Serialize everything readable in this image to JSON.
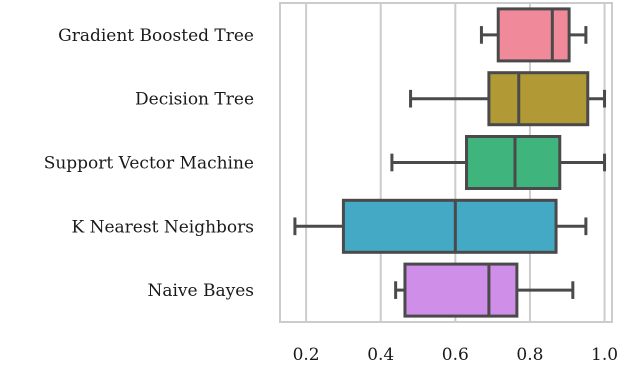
{
  "chart_data": {
    "type": "box",
    "orientation": "horizontal",
    "title": "",
    "xlabel": "",
    "ylabel": "",
    "xlim": [
      0.13,
      1.02
    ],
    "x_ticks": [
      "0.2",
      "0.4",
      "0.6",
      "0.8",
      "1.0"
    ],
    "grid": "vertical",
    "categories": [
      "Gradient Boosted Tree",
      "Decision Tree",
      "Support Vector Machine",
      "K Nearest Neighbors",
      "Naive Bayes"
    ],
    "boxes": [
      {
        "name": "Gradient Boosted Tree",
        "whisker_low": 0.67,
        "q1": 0.715,
        "median": 0.86,
        "q3": 0.905,
        "whisker_high": 0.95,
        "color": "#f08a9a"
      },
      {
        "name": "Decision Tree",
        "whisker_low": 0.48,
        "q1": 0.69,
        "median": 0.77,
        "q3": 0.955,
        "whisker_high": 1.0,
        "color": "#b19a36"
      },
      {
        "name": "Support Vector Machine",
        "whisker_low": 0.43,
        "q1": 0.63,
        "median": 0.76,
        "q3": 0.88,
        "whisker_high": 1.0,
        "color": "#3fb47c"
      },
      {
        "name": "K Nearest Neighbors",
        "whisker_low": 0.17,
        "q1": 0.3,
        "median": 0.6,
        "q3": 0.87,
        "whisker_high": 0.95,
        "color": "#43a9c4"
      },
      {
        "name": "Naive Bayes",
        "whisker_low": 0.44,
        "q1": 0.465,
        "median": 0.69,
        "q3": 0.765,
        "whisker_high": 0.915,
        "color": "#cf8ee8"
      }
    ]
  }
}
